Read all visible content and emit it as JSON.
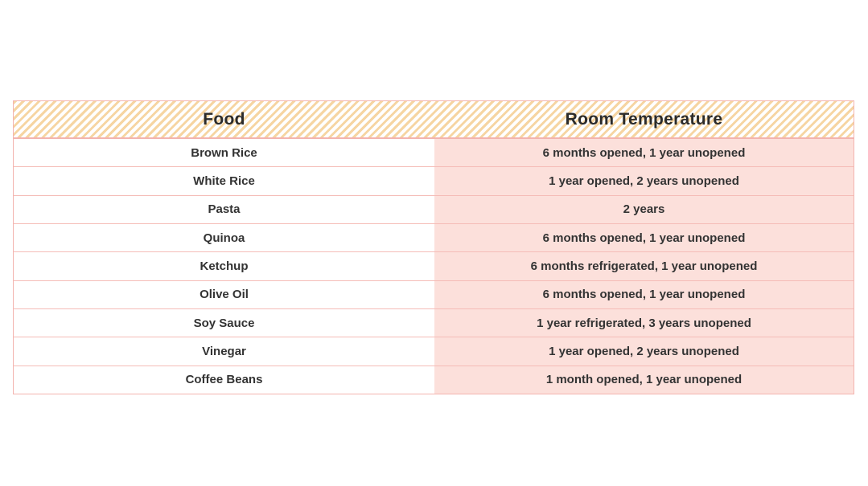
{
  "page": {
    "background_color": "#ffffff"
  },
  "table": {
    "columns": [
      {
        "label": "Food"
      },
      {
        "label": "Room Temperature"
      }
    ],
    "rows": [
      {
        "food": "Brown Rice",
        "room_temperature": "6 months opened, 1 year unopened"
      },
      {
        "food": "White Rice",
        "room_temperature": "1 year opened, 2 years unopened"
      },
      {
        "food": "Pasta",
        "room_temperature": "2 years"
      },
      {
        "food": "Quinoa",
        "room_temperature": "6 months opened, 1 year unopened"
      },
      {
        "food": "Ketchup",
        "room_temperature": "6 months refrigerated, 1 year unopened"
      },
      {
        "food": "Olive Oil",
        "room_temperature": "6 months opened, 1 year unopened"
      },
      {
        "food": "Soy Sauce",
        "room_temperature": "1 year refrigerated, 3 years unopened"
      },
      {
        "food": "Vinegar",
        "room_temperature": "1 year opened, 2 years unopened"
      },
      {
        "food": "Coffee Beans",
        "room_temperature": "1 month opened, 1 year unopened"
      }
    ],
    "colors": {
      "header_stripe": "#f6d5a2",
      "header_text": "#2b2b2b",
      "cell_text": "#333333",
      "food_cell_background": "#ffffff",
      "room_temp_cell_background": "#fce0db",
      "border": "#f3b4af"
    }
  }
}
